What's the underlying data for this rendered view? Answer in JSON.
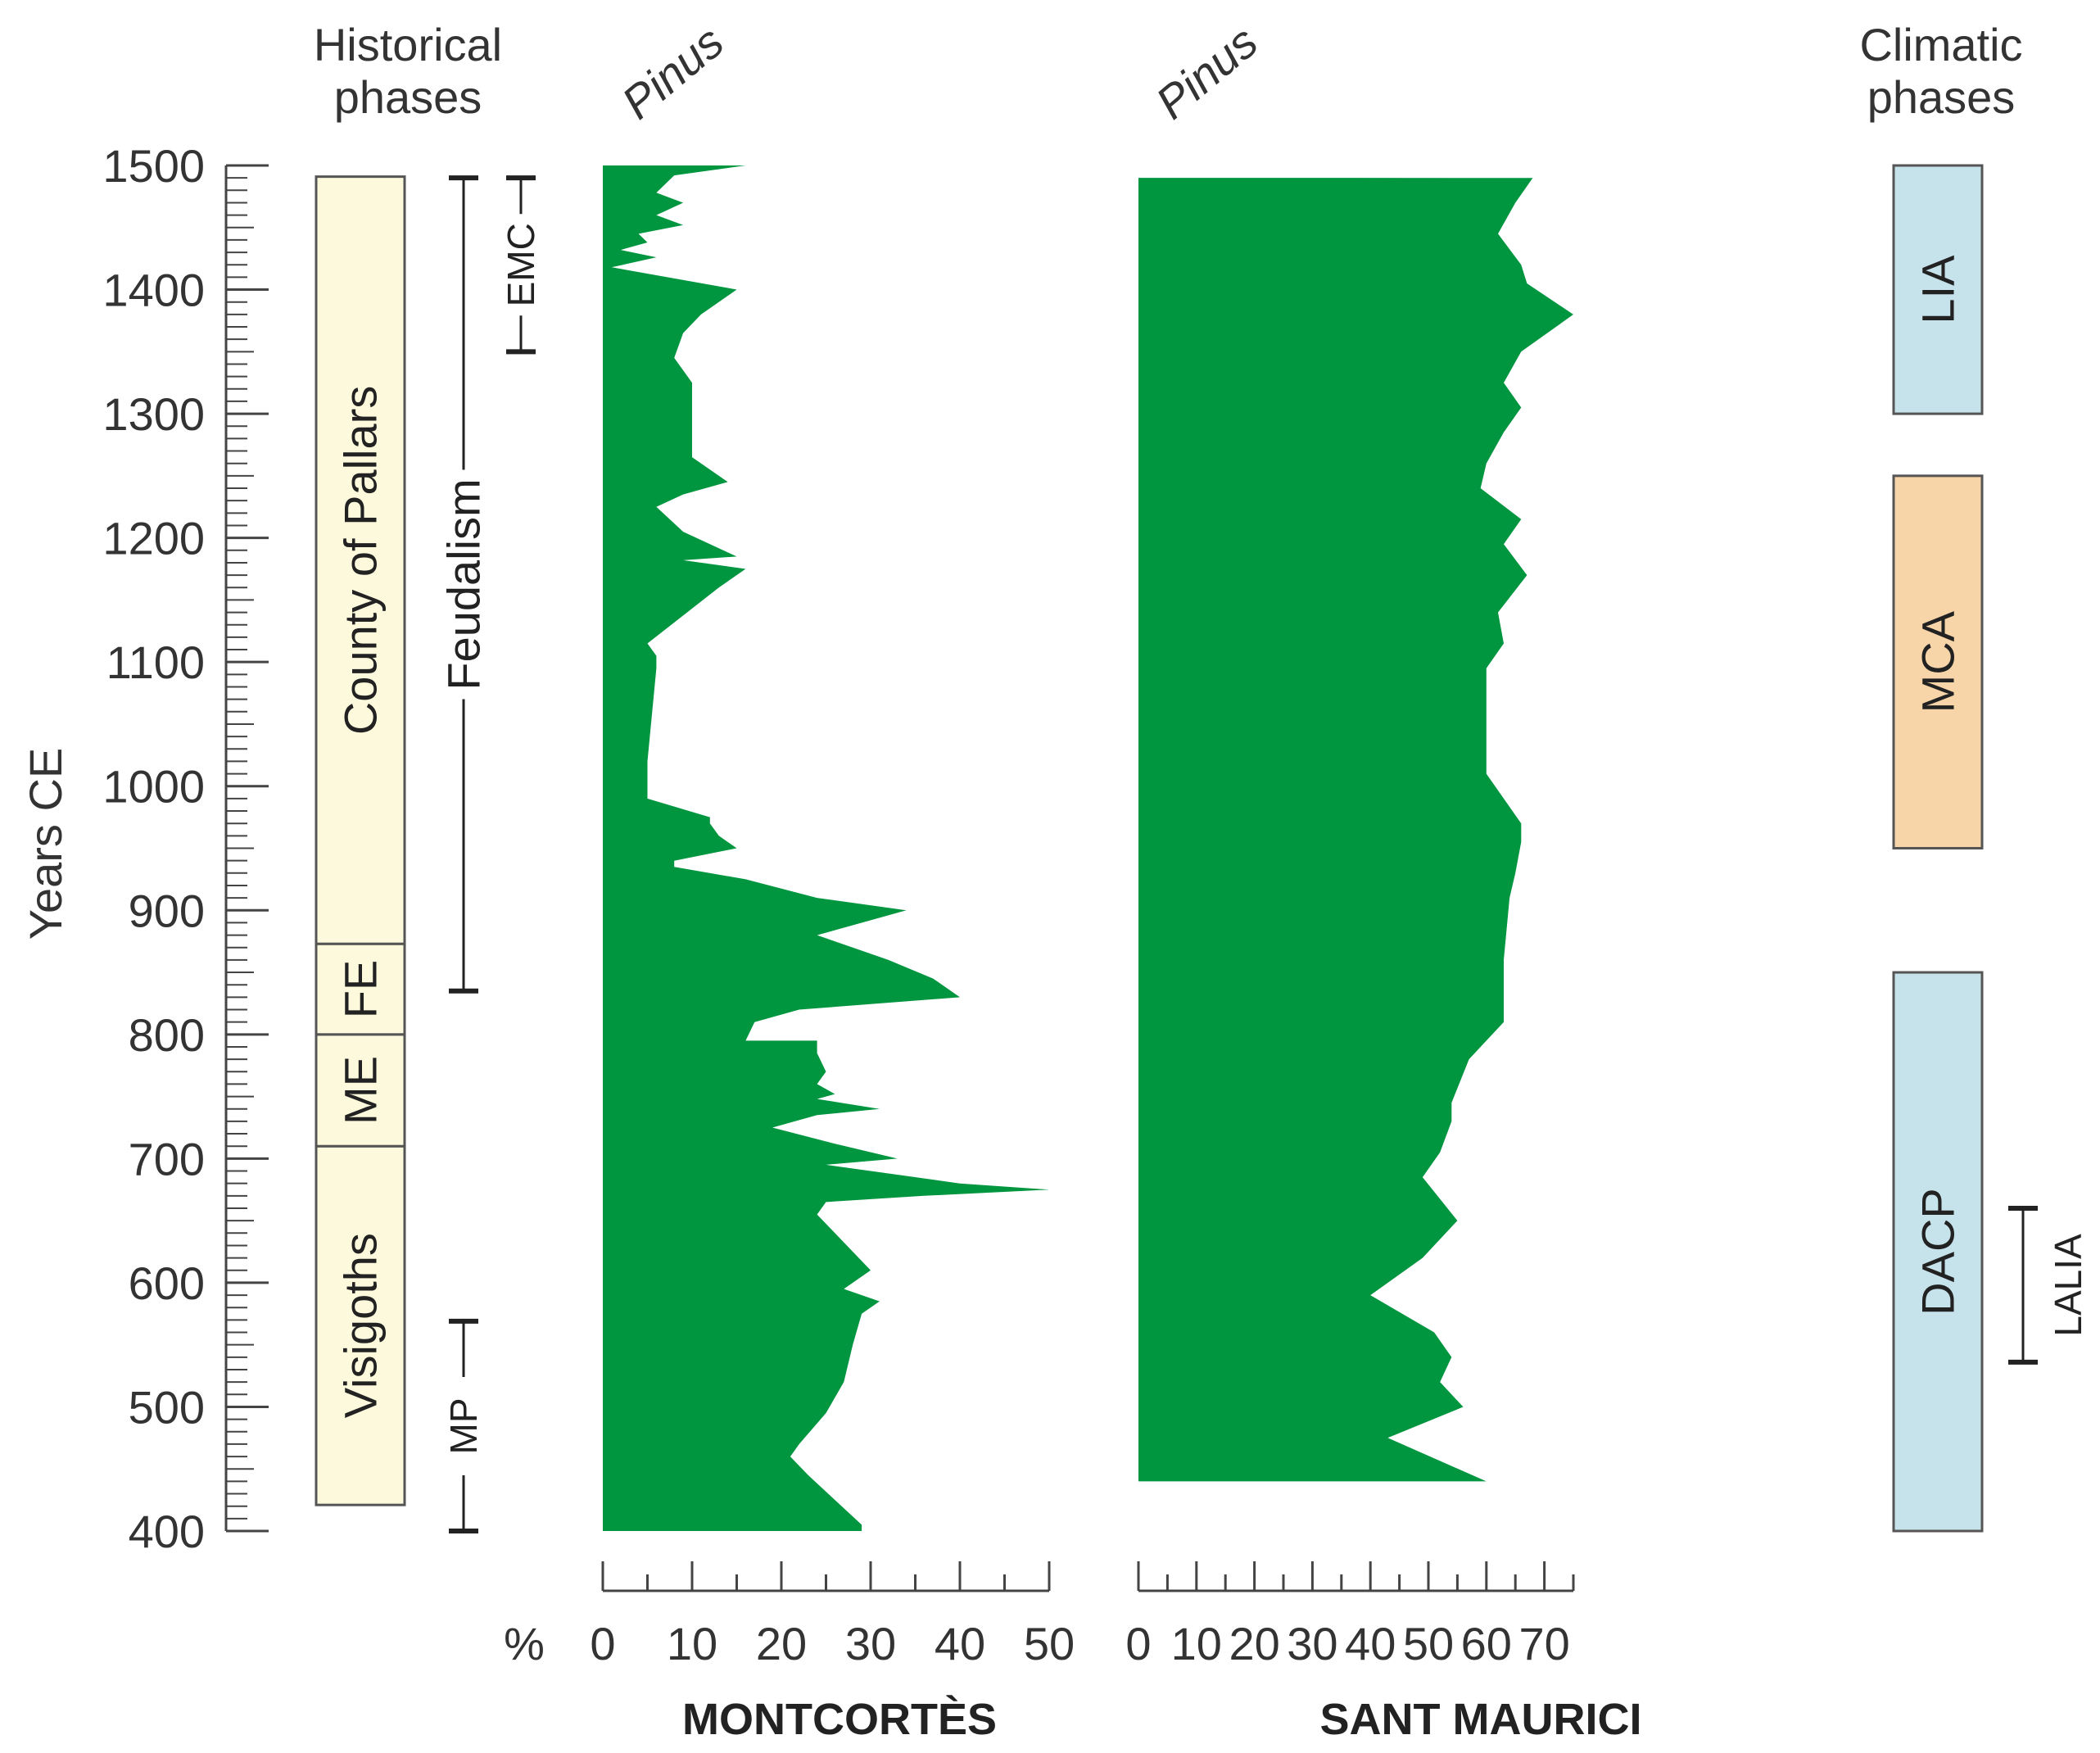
{
  "chart_data": {
    "type": "area",
    "y_axis": {
      "label": "Years CE",
      "range": [
        400,
        1500
      ],
      "ticks": [
        400,
        500,
        600,
        700,
        800,
        900,
        1000,
        1100,
        1200,
        1300,
        1400,
        1500
      ],
      "minor_step": 10
    },
    "headers": {
      "historical": [
        "Historical",
        "phases"
      ],
      "climatic": [
        "Climatic",
        "phases"
      ],
      "percent_unit": "%"
    },
    "historical_phases": [
      {
        "name": "Visigoths",
        "start": 421,
        "end": 710
      },
      {
        "name": "ME",
        "start": 710,
        "end": 800
      },
      {
        "name": "FE",
        "start": 800,
        "end": 873
      },
      {
        "name": "County of Pallars",
        "start": 873,
        "end": 1491
      }
    ],
    "periods": [
      {
        "name": "Feudalism",
        "start": 835,
        "end": 1490
      },
      {
        "name": "MP",
        "start": 400,
        "end": 569
      },
      {
        "name": "EMC",
        "start": 1350,
        "end": 1490
      }
    ],
    "climatic_phases": [
      {
        "name": "LIA",
        "start": 1300,
        "end": 1500,
        "color": "#c6e2ea"
      },
      {
        "name": "MCA",
        "start": 950,
        "end": 1250,
        "color": "#f8d5a8"
      },
      {
        "name": "DACP",
        "start": 400,
        "end": 850,
        "color": "#c6e2ea"
      }
    ],
    "lalia": {
      "name": "LALIA",
      "start": 536,
      "end": 660
    },
    "series": [
      {
        "name": "MONTCORTÈS",
        "taxon": "Pinus",
        "color": "#009640",
        "xlim": [
          0,
          50
        ],
        "ticks": [
          0,
          10,
          20,
          30,
          40,
          50
        ],
        "points": [
          [
            1500,
            16
          ],
          [
            1492,
            8
          ],
          [
            1478,
            6
          ],
          [
            1470,
            9
          ],
          [
            1460,
            6
          ],
          [
            1452,
            9
          ],
          [
            1445,
            4
          ],
          [
            1438,
            5
          ],
          [
            1432,
            2
          ],
          [
            1426,
            6
          ],
          [
            1418,
            1
          ],
          [
            1400,
            15
          ],
          [
            1380,
            11
          ],
          [
            1365,
            9
          ],
          [
            1345,
            8
          ],
          [
            1325,
            10
          ],
          [
            1302,
            10
          ],
          [
            1282,
            10
          ],
          [
            1265,
            10
          ],
          [
            1245,
            14
          ],
          [
            1235,
            9
          ],
          [
            1225,
            6
          ],
          [
            1205,
            9
          ],
          [
            1185,
            15
          ],
          [
            1182,
            9
          ],
          [
            1175,
            16
          ],
          [
            1160,
            13
          ],
          [
            1115,
            5
          ],
          [
            1105,
            6
          ],
          [
            1095,
            6
          ],
          [
            1020,
            5
          ],
          [
            990,
            5
          ],
          [
            975,
            12
          ],
          [
            970,
            12
          ],
          [
            960,
            13
          ],
          [
            950,
            15
          ],
          [
            940,
            8
          ],
          [
            935,
            8
          ],
          [
            925,
            16
          ],
          [
            910,
            24
          ],
          [
            900,
            34
          ],
          [
            880,
            24
          ],
          [
            860,
            32
          ],
          [
            845,
            37
          ],
          [
            830,
            40
          ],
          [
            820,
            22
          ],
          [
            810,
            17
          ],
          [
            795,
            16
          ],
          [
            795,
            24
          ],
          [
            785,
            24
          ],
          [
            770,
            25
          ],
          [
            760,
            24
          ],
          [
            752,
            26
          ],
          [
            748,
            24
          ],
          [
            740,
            31
          ],
          [
            735,
            24
          ],
          [
            725,
            19
          ],
          [
            712,
            26
          ],
          [
            700,
            33
          ],
          [
            695,
            25
          ],
          [
            690,
            30
          ],
          [
            680,
            40
          ],
          [
            675,
            50
          ],
          [
            670,
            36
          ],
          [
            665,
            25
          ],
          [
            655,
            24
          ],
          [
            640,
            26
          ],
          [
            625,
            28
          ],
          [
            610,
            30
          ],
          [
            595,
            27
          ],
          [
            585,
            31
          ],
          [
            575,
            29
          ],
          [
            550,
            28
          ],
          [
            520,
            27
          ],
          [
            495,
            25
          ],
          [
            470,
            22
          ],
          [
            460,
            21
          ],
          [
            445,
            23
          ],
          [
            425,
            26
          ],
          [
            405,
            29
          ],
          [
            400,
            29
          ]
        ]
      },
      {
        "name": "SANT MAURICI",
        "taxon": "Pinus",
        "color": "#009640",
        "xlim": [
          0,
          75
        ],
        "ticks": [
          0,
          10,
          20,
          30,
          40,
          50,
          60,
          70
        ],
        "points": [
          [
            1490,
            68
          ],
          [
            1470,
            65
          ],
          [
            1445,
            62
          ],
          [
            1420,
            66
          ],
          [
            1405,
            67
          ],
          [
            1380,
            75
          ],
          [
            1350,
            66
          ],
          [
            1325,
            63
          ],
          [
            1305,
            66
          ],
          [
            1285,
            63
          ],
          [
            1260,
            60
          ],
          [
            1240,
            59
          ],
          [
            1215,
            66
          ],
          [
            1195,
            63
          ],
          [
            1170,
            67
          ],
          [
            1140,
            62
          ],
          [
            1115,
            63
          ],
          [
            1095,
            60
          ],
          [
            1010,
            60
          ],
          [
            970,
            66
          ],
          [
            955,
            66
          ],
          [
            930,
            65
          ],
          [
            910,
            64
          ],
          [
            860,
            63
          ],
          [
            810,
            63
          ],
          [
            780,
            57
          ],
          [
            745,
            54
          ],
          [
            730,
            54
          ],
          [
            705,
            52
          ],
          [
            685,
            49
          ],
          [
            650,
            55
          ],
          [
            620,
            49
          ],
          [
            590,
            40
          ],
          [
            560,
            51
          ],
          [
            540,
            54
          ],
          [
            520,
            52
          ],
          [
            500,
            56
          ],
          [
            475,
            43
          ],
          [
            440,
            60
          ]
        ]
      }
    ]
  }
}
